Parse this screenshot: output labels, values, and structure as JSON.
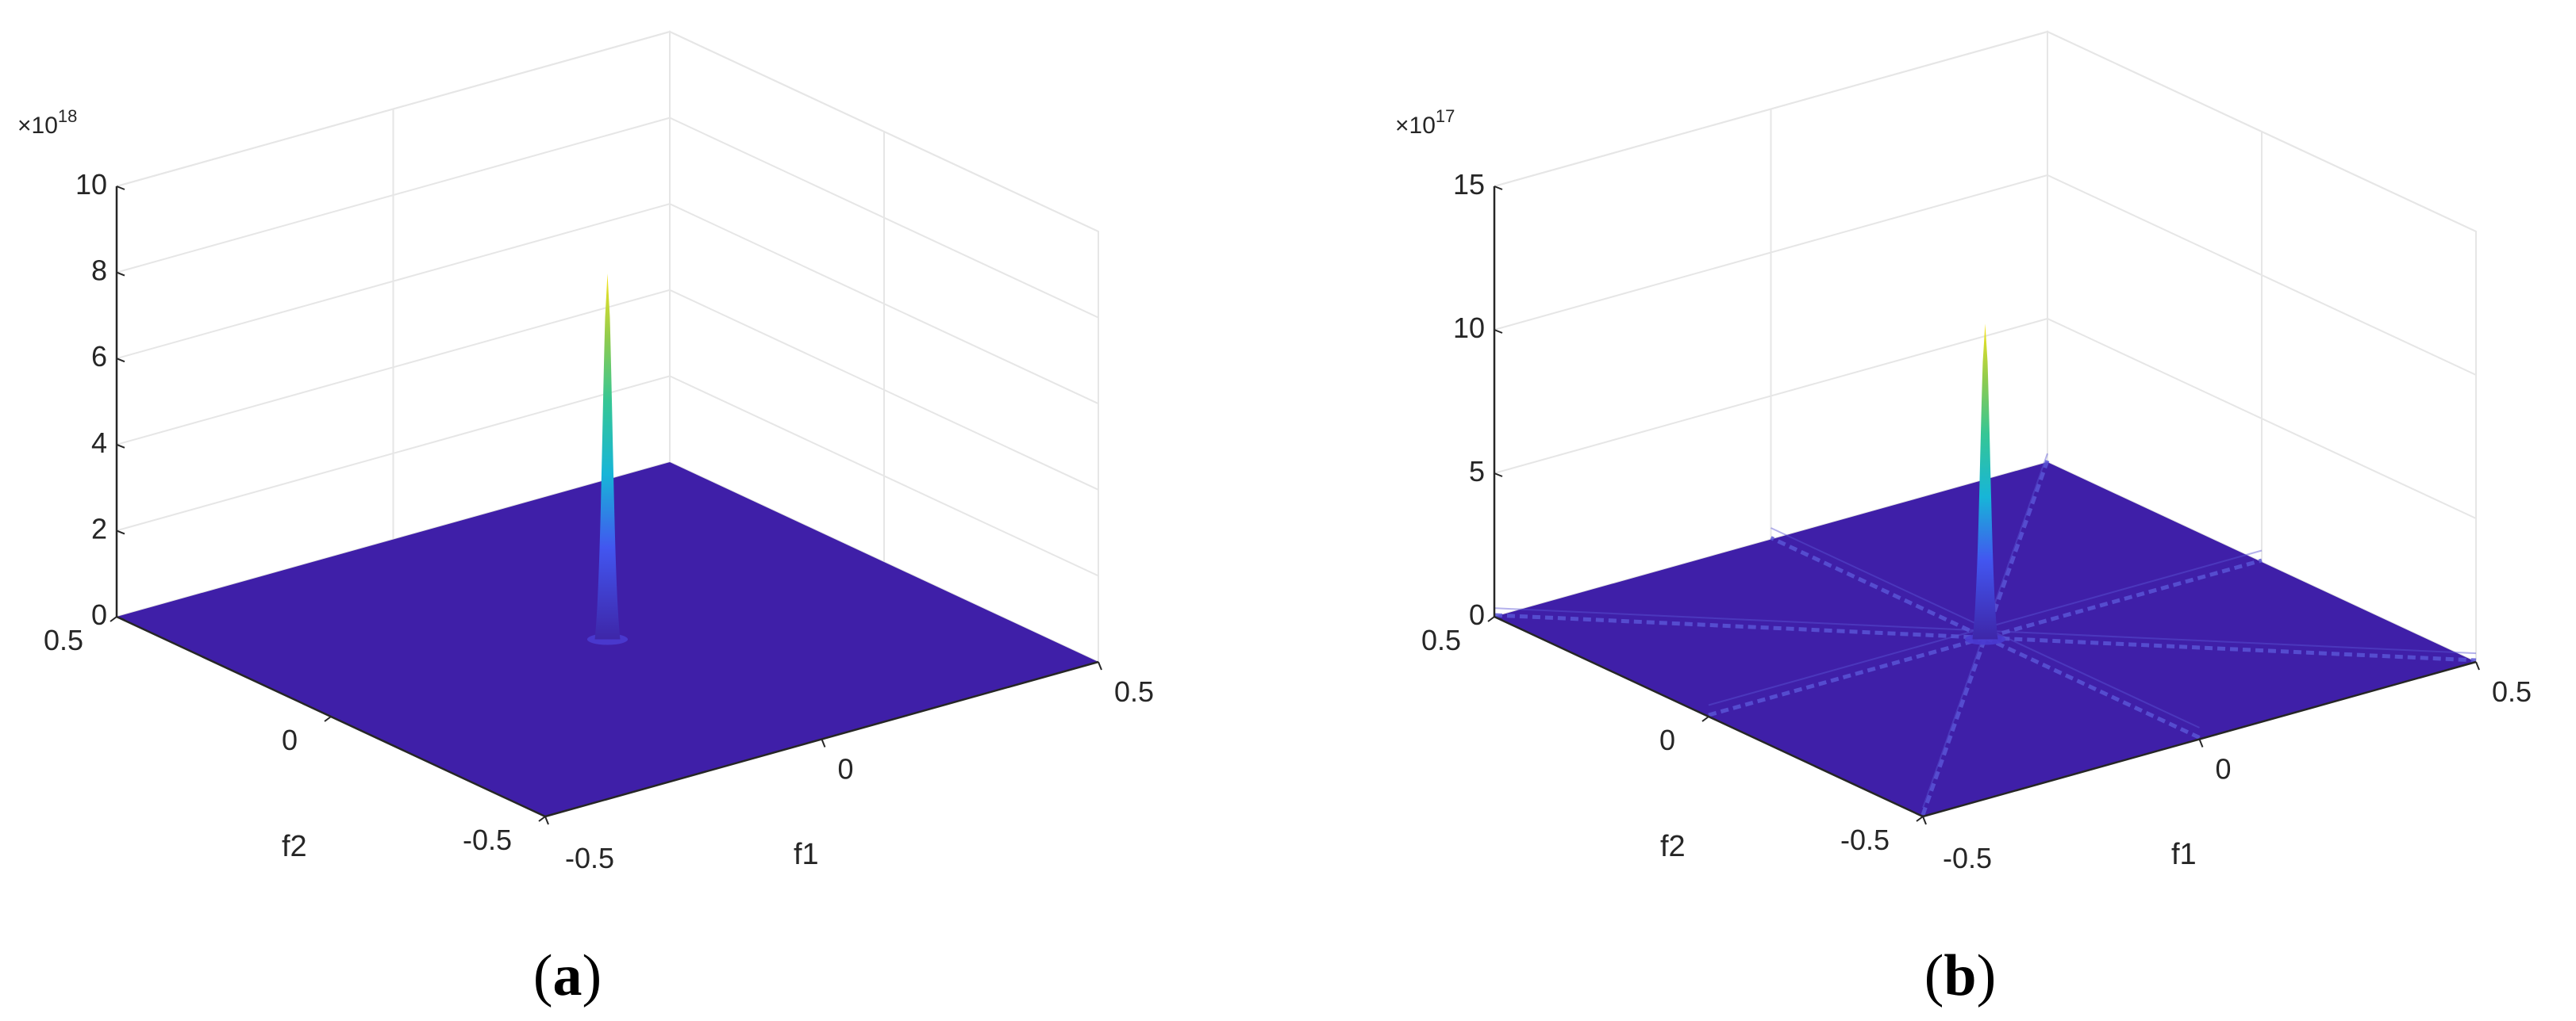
{
  "colors": {
    "floor": "#3f1fa8",
    "floor_ridge": "#5a55d6",
    "grid": "#e6e6e6",
    "axis": "#262626",
    "colormap": [
      "#3e26a8",
      "#4256f0",
      "#2f8cf5",
      "#17b5d8",
      "#35c695",
      "#8dcb4f",
      "#ddbd36",
      "#f9e41e"
    ]
  },
  "chart_data": [
    {
      "type": "surface",
      "panel_label": "a",
      "xlabel": "f1",
      "ylabel": "f2",
      "zlabel": "",
      "x_ticks": [
        "-0.5",
        "0",
        "0.5"
      ],
      "y_ticks": [
        "-0.5",
        "0",
        "0.5"
      ],
      "z_ticks": [
        "0",
        "2",
        "4",
        "6",
        "8",
        "10"
      ],
      "z_tick_values": [
        0,
        2,
        4,
        6,
        8,
        10
      ],
      "xlim": [
        -0.5,
        0.5
      ],
      "ylim": [
        -0.5,
        0.5
      ],
      "zlim": [
        0,
        10
      ],
      "z_multiplier": "×10",
      "z_exponent": "18",
      "grid": true,
      "peak": {
        "f1": 0,
        "f2": 0,
        "value": 8.5
      },
      "ridges": []
    },
    {
      "type": "surface",
      "panel_label": "b",
      "xlabel": "f1",
      "ylabel": "f2",
      "zlabel": "",
      "x_ticks": [
        "-0.5",
        "0",
        "0.5"
      ],
      "y_ticks": [
        "-0.5",
        "0",
        "0.5"
      ],
      "z_ticks": [
        "0",
        "5",
        "10",
        "15"
      ],
      "z_tick_values": [
        0,
        5,
        10,
        15
      ],
      "xlim": [
        -0.5,
        0.5
      ],
      "ylim": [
        -0.5,
        0.5
      ],
      "zlim": [
        0,
        15
      ],
      "z_multiplier": "×10",
      "z_exponent": "17",
      "grid": true,
      "peak": {
        "f1": 0,
        "f2": 0,
        "value": 11
      },
      "ridges": [
        {
          "from": [
            -0.5,
            0
          ],
          "to": [
            0.5,
            0
          ],
          "level": 0.4
        },
        {
          "from": [
            0,
            -0.5
          ],
          "to": [
            0,
            0.5
          ],
          "level": 0.4
        },
        {
          "from": [
            -0.5,
            -0.5
          ],
          "to": [
            0.5,
            0.5
          ],
          "level": 0.3
        },
        {
          "from": [
            -0.5,
            0.5
          ],
          "to": [
            0.5,
            -0.5
          ],
          "level": 0.3
        }
      ]
    }
  ]
}
